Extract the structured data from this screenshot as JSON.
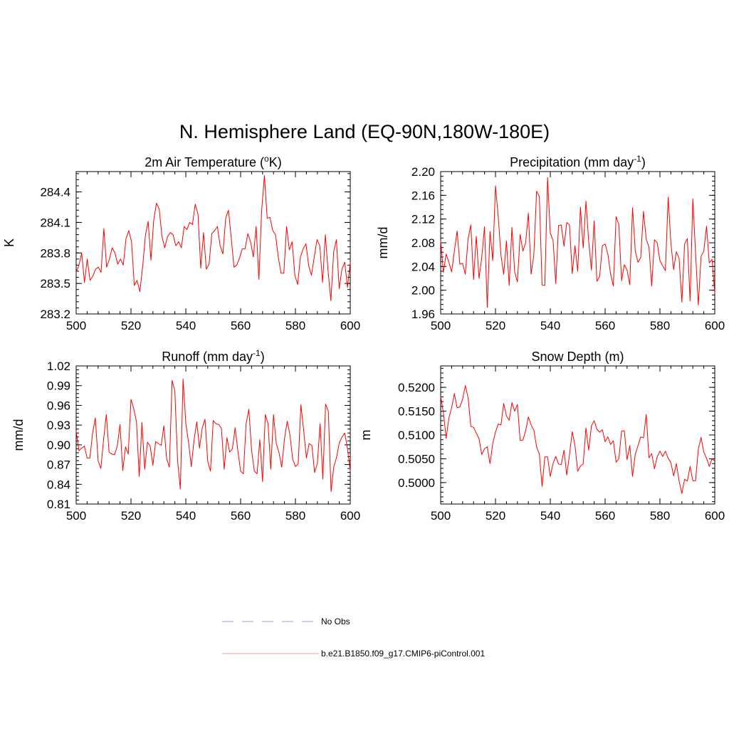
{
  "figure_title": "N. Hemisphere Land (EQ-90N,180W-180E)",
  "colors": {
    "series": "#ff0000",
    "obs": "#9999ff",
    "axis": "#000000",
    "legend_line": "#ff9999"
  },
  "legend": {
    "obs_label": "No Obs",
    "model_label": "b.e21.B1850.f09_g17.CMIP6-piControl.001"
  },
  "chart_data": [
    {
      "id": "temp",
      "type": "line",
      "title": "2m Air Temperature (",
      "title_sup": "o",
      "title_end": "K)",
      "ylabel": "K",
      "xlim": [
        500,
        600
      ],
      "ylim": [
        283.2,
        284.6
      ],
      "xticks": [
        500,
        520,
        540,
        560,
        580,
        600
      ],
      "xtick_labels": [
        "500",
        "520",
        "540",
        "560",
        "580",
        "600"
      ],
      "yticks": [
        283.2,
        283.5,
        283.8,
        284.1,
        284.4
      ],
      "ytick_labels": [
        "283.2",
        "283.5",
        "283.8",
        "284.1",
        "284.4"
      ],
      "series": [
        {
          "name": "b.e21.B1850.f09_g17.CMIP6-piControl.001",
          "values": [
            283.61,
            283.68,
            283.8,
            283.51,
            283.74,
            283.53,
            283.57,
            283.64,
            283.66,
            283.61,
            284.04,
            283.66,
            283.74,
            283.85,
            283.8,
            283.69,
            283.74,
            283.68,
            283.94,
            284.02,
            283.91,
            283.48,
            283.53,
            283.42,
            283.66,
            283.97,
            284.11,
            283.73,
            284.12,
            284.29,
            284.23,
            283.96,
            283.85,
            283.96,
            284.0,
            283.98,
            283.87,
            283.91,
            283.85,
            284.06,
            284.03,
            284.1,
            284.08,
            284.28,
            284.18,
            283.65,
            284.0,
            283.64,
            283.69,
            283.99,
            284.02,
            284.06,
            283.87,
            283.79,
            284.14,
            284.22,
            283.95,
            283.66,
            283.68,
            283.75,
            283.84,
            283.84,
            283.99,
            283.91,
            283.76,
            284.06,
            283.54,
            284.22,
            284.56,
            284.14,
            284.15,
            284.02,
            283.98,
            283.76,
            283.6,
            283.6,
            284.06,
            283.83,
            283.91,
            283.58,
            283.49,
            283.76,
            283.84,
            283.89,
            283.67,
            283.58,
            283.76,
            283.93,
            283.87,
            283.51,
            283.98,
            283.62,
            283.33,
            283.81,
            283.93,
            283.45,
            283.64,
            283.71,
            283.46,
            283.71
          ]
        }
      ]
    },
    {
      "id": "precip",
      "type": "line",
      "title": "Precipitation (mm day",
      "title_sup": "-1",
      "title_end": ")",
      "ylabel": "mm/d",
      "xlim": [
        500,
        600
      ],
      "ylim": [
        1.96,
        2.2
      ],
      "xticks": [
        500,
        520,
        540,
        560,
        580,
        600
      ],
      "xtick_labels": [
        "500",
        "520",
        "540",
        "560",
        "580",
        "600"
      ],
      "yticks": [
        1.96,
        2.0,
        2.04,
        2.08,
        2.12,
        2.16,
        2.2
      ],
      "ytick_labels": [
        "1.96",
        "2.00",
        "2.04",
        "2.08",
        "2.12",
        "2.16",
        "2.20"
      ],
      "series": [
        {
          "name": "b.e21.B1850.f09_g17.CMIP6-piControl.001",
          "values": [
            2.084,
            2.03,
            2.061,
            2.047,
            2.031,
            2.066,
            2.1,
            2.044,
            2.045,
            2.027,
            2.087,
            2.11,
            2.018,
            2.091,
            2.02,
            2.056,
            2.107,
            1.971,
            2.099,
            2.05,
            2.176,
            2.124,
            2.059,
            2.027,
            2.083,
            2.008,
            2.106,
            2.031,
            2.014,
            2.094,
            2.066,
            2.08,
            2.13,
            2.027,
            2.06,
            2.167,
            2.158,
            2.009,
            2.008,
            2.19,
            2.096,
            2.084,
            2.011,
            2.109,
            2.11,
            2.074,
            2.114,
            2.11,
            2.028,
            2.075,
            2.032,
            2.14,
            2.071,
            2.15,
            2.083,
            2.034,
            2.117,
            2.015,
            2.023,
            2.075,
            2.078,
            2.061,
            2.027,
            2.007,
            2.124,
            2.111,
            2.016,
            2.043,
            2.034,
            2.009,
            2.139,
            2.066,
            2.047,
            2.055,
            2.133,
            2.086,
            2.073,
            2.007,
            2.085,
            2.08,
            2.05,
            2.041,
            2.033,
            2.157,
            2.079,
            2.035,
            2.065,
            2.053,
            1.98,
            2.078,
            2.087,
            1.982,
            2.154,
            2.062,
            1.975,
            2.057,
            2.066,
            2.108,
            2.046,
            2.052,
            1.995
          ]
        }
      ]
    },
    {
      "id": "runoff",
      "type": "line",
      "title": "Runoff (mm day",
      "title_sup": "-1",
      "title_end": ")",
      "ylabel": "mm/d",
      "xlim": [
        500,
        600
      ],
      "ylim": [
        0.81,
        1.02
      ],
      "xticks": [
        500,
        520,
        540,
        560,
        580,
        600
      ],
      "xtick_labels": [
        "500",
        "520",
        "540",
        "560",
        "580",
        "600"
      ],
      "yticks": [
        0.81,
        0.84,
        0.87,
        0.9,
        0.93,
        0.96,
        0.99,
        1.02
      ],
      "ytick_labels": [
        "0.81",
        "0.84",
        "0.87",
        "0.90",
        "0.93",
        "0.96",
        "0.99",
        "1.02"
      ],
      "series": [
        {
          "name": "b.e21.B1850.f09_g17.CMIP6-piControl.001",
          "values": [
            0.921,
            0.891,
            0.895,
            0.898,
            0.88,
            0.88,
            0.918,
            0.941,
            0.876,
            0.864,
            0.908,
            0.946,
            0.889,
            0.886,
            0.885,
            0.898,
            0.931,
            0.861,
            0.897,
            0.886,
            0.969,
            0.955,
            0.935,
            0.852,
            0.934,
            0.863,
            0.904,
            0.898,
            0.869,
            0.905,
            0.902,
            0.899,
            0.929,
            0.879,
            0.866,
            0.998,
            0.982,
            0.876,
            0.833,
            1.0,
            0.933,
            0.904,
            0.867,
            0.907,
            0.935,
            0.895,
            0.926,
            0.939,
            0.875,
            0.86,
            0.937,
            0.932,
            0.931,
            0.925,
            0.863,
            0.911,
            0.889,
            0.894,
            0.926,
            0.891,
            0.86,
            0.856,
            0.932,
            0.954,
            0.892,
            0.86,
            0.856,
            0.908,
            0.844,
            0.946,
            0.932,
            0.863,
            0.946,
            0.902,
            0.888,
            0.866,
            0.909,
            0.936,
            0.915,
            0.878,
            0.867,
            0.871,
            0.961,
            0.922,
            0.88,
            0.902,
            0.899,
            0.858,
            0.872,
            0.932,
            0.848,
            0.962,
            0.951,
            0.829,
            0.867,
            0.881,
            0.903,
            0.912,
            0.918,
            0.894,
            0.86
          ]
        }
      ]
    },
    {
      "id": "snow",
      "type": "line",
      "title": "Snow Depth (m)",
      "title_sup": "",
      "title_end": "",
      "ylabel": "m",
      "xlim": [
        500,
        600
      ],
      "ylim": [
        0.4955,
        0.5245
      ],
      "xticks": [
        500,
        520,
        540,
        560,
        580,
        600
      ],
      "xtick_labels": [
        "500",
        "520",
        "540",
        "560",
        "580",
        "600"
      ],
      "yticks": [
        0.5,
        0.505,
        0.51,
        0.515,
        0.52
      ],
      "ytick_labels": [
        "0.5000",
        "0.5050",
        "0.5100",
        "0.5150",
        "0.5200"
      ],
      "series": [
        {
          "name": "b.e21.B1850.f09_g17.CMIP6-piControl.001",
          "values": [
            0.5181,
            0.5147,
            0.5093,
            0.5136,
            0.5157,
            0.5187,
            0.5157,
            0.5159,
            0.5175,
            0.5204,
            0.5178,
            0.5118,
            0.5116,
            0.5104,
            0.5092,
            0.5059,
            0.5071,
            0.5075,
            0.504,
            0.5082,
            0.5106,
            0.5123,
            0.5121,
            0.5166,
            0.514,
            0.5131,
            0.5168,
            0.515,
            0.5164,
            0.5089,
            0.5089,
            0.5109,
            0.5138,
            0.5121,
            0.511,
            0.5075,
            0.506,
            0.4992,
            0.5054,
            0.5054,
            0.5013,
            0.504,
            0.5055,
            0.5039,
            0.5038,
            0.5068,
            0.5016,
            0.5058,
            0.5107,
            0.5078,
            0.5024,
            0.5035,
            0.5039,
            0.5115,
            0.5068,
            0.5119,
            0.513,
            0.5112,
            0.5106,
            0.5111,
            0.5086,
            0.5096,
            0.508,
            0.5088,
            0.5043,
            0.505,
            0.5108,
            0.5109,
            0.5048,
            0.5078,
            0.5013,
            0.506,
            0.5078,
            0.5096,
            0.5094,
            0.5143,
            0.5052,
            0.5061,
            0.5029,
            0.5054,
            0.5066,
            0.5055,
            0.5066,
            0.5051,
            0.5042,
            0.5014,
            0.504,
            0.5003,
            0.4977,
            0.5007,
            0.5003,
            0.5034,
            0.5004,
            0.5004,
            0.507,
            0.5095,
            0.5064,
            0.5051,
            0.5034,
            0.505,
            0.5045
          ]
        }
      ]
    }
  ]
}
